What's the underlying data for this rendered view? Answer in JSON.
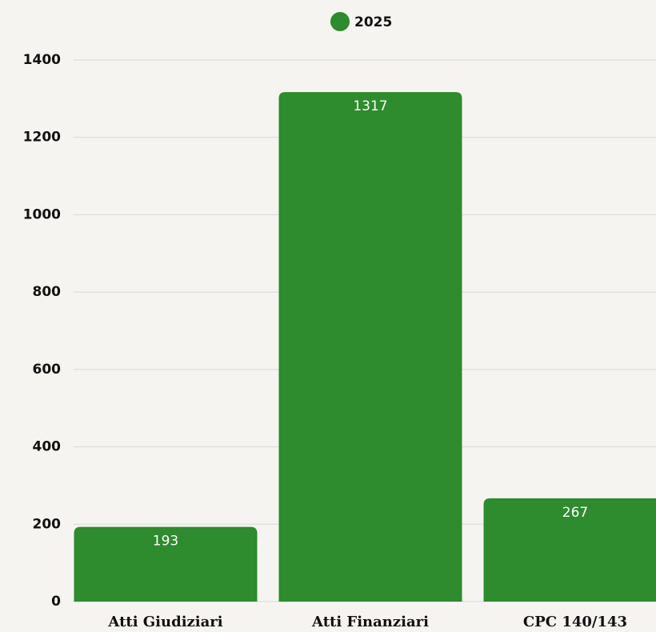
{
  "chart_data": {
    "type": "bar",
    "categories": [
      "Atti Giudiziari",
      "Atti Finanziari",
      "CPC 140/143"
    ],
    "series": [
      {
        "name": "2025",
        "color": "#2e8b2e",
        "values": [
          193,
          1317,
          267
        ]
      }
    ],
    "ylim": [
      0,
      1400
    ],
    "yticks": [
      0,
      200,
      400,
      600,
      800,
      1000,
      1200,
      1400
    ],
    "grid": true,
    "legend": "top"
  }
}
